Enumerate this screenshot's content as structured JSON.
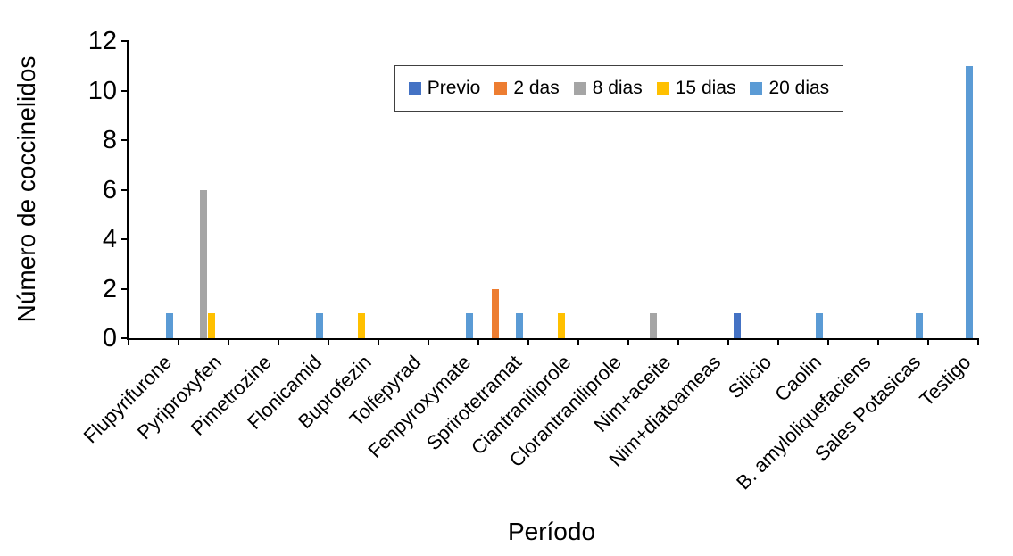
{
  "chart_data": {
    "type": "bar",
    "title": "",
    "xlabel": "Período",
    "ylabel": "Número de coccinelidos",
    "ylim": [
      0,
      12
    ],
    "yticks": [
      0,
      2,
      4,
      6,
      8,
      10,
      12
    ],
    "grid": false,
    "legend_position": "top-center-inside",
    "categories": [
      "Flupyrifurone",
      "Pyriproxyfen",
      "Pimetrozine",
      "Flonicamid",
      "Buprofezin",
      "Tolfepyrad",
      "Fenpyroxymate",
      "Sprirotetramat",
      "Ciantraniliprole",
      "Clorantraniliprole",
      "Nim+aceite",
      "Nim+diatoameas",
      "Silicio",
      "Caolin",
      "B. amyloliquefaciens",
      "Sales Potasicas",
      "Testigo"
    ],
    "series": [
      {
        "name": "Previo",
        "color": "#4472C4",
        "values": [
          0,
          0,
          0,
          0,
          0,
          0,
          0,
          0,
          0,
          0,
          0,
          0,
          1,
          0,
          0,
          0,
          0
        ]
      },
      {
        "name": "2 das",
        "color": "#ED7D31",
        "values": [
          0,
          0,
          0,
          0,
          0,
          0,
          0,
          2,
          0,
          0,
          0,
          0,
          0,
          0,
          0,
          0,
          0
        ]
      },
      {
        "name": "8 dias",
        "color": "#A5A5A5",
        "values": [
          0,
          6,
          0,
          0,
          0,
          0,
          0,
          0,
          0,
          0,
          1,
          0,
          0,
          0,
          0,
          0,
          0
        ]
      },
      {
        "name": "15 dias",
        "color": "#FFC000",
        "values": [
          0,
          1,
          0,
          0,
          1,
          0,
          0,
          0,
          1,
          0,
          0,
          0,
          0,
          0,
          0,
          0,
          0
        ]
      },
      {
        "name": "20 dias",
        "color": "#5B9BD5",
        "values": [
          1,
          0,
          0,
          1,
          0,
          0,
          1,
          1,
          0,
          0,
          0,
          0,
          0,
          1,
          0,
          1,
          11
        ]
      }
    ]
  }
}
